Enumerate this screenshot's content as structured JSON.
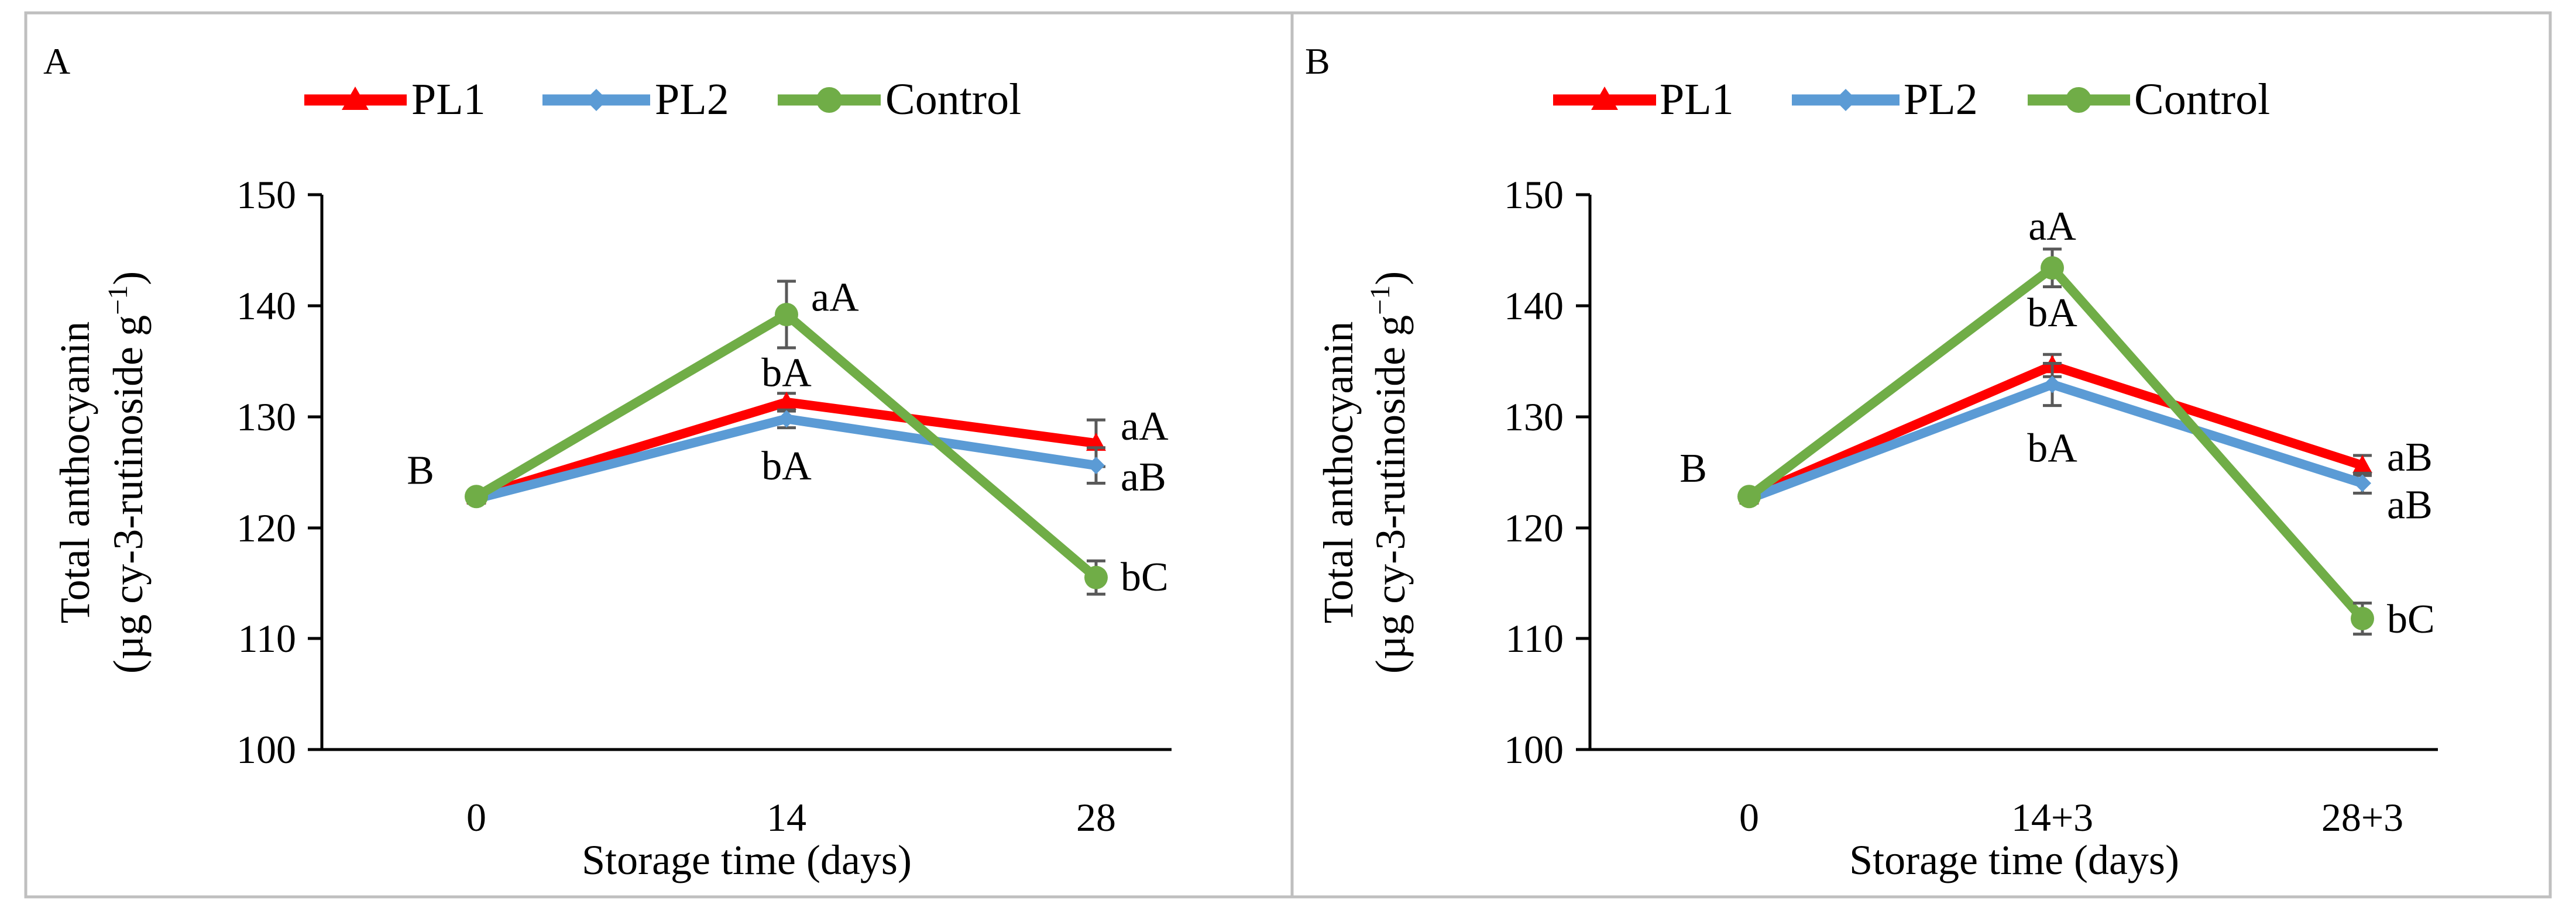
{
  "colors": {
    "PL1": "#ff0000",
    "PL2": "#5b9bd5",
    "Control": "#70ad47",
    "axis": "#000000",
    "frame": "#bfbfbf",
    "errorbar": "#595959"
  },
  "chart_data": [
    {
      "type": "line",
      "panel_label": "A",
      "categories": [
        "0",
        "14",
        "28"
      ],
      "series": [
        {
          "name": "PL1",
          "marker": "triangle",
          "values": [
            122.8,
            131.3,
            127.6
          ],
          "errors": [
            0.4,
            0.8,
            2.1
          ]
        },
        {
          "name": "PL2",
          "marker": "diamond",
          "values": [
            122.6,
            129.8,
            125.6
          ],
          "errors": [
            0.4,
            0.8,
            1.6
          ]
        },
        {
          "name": "Control",
          "marker": "circle",
          "values": [
            122.8,
            139.2,
            115.5
          ],
          "errors": [
            0.4,
            3.0,
            1.5
          ]
        }
      ],
      "annotations": [
        {
          "text": "B",
          "category": 0,
          "value": 125.2,
          "align": "left"
        },
        {
          "text": "aA",
          "category": 1,
          "value": 140.8,
          "align": "right"
        },
        {
          "text": "bA",
          "category": 1,
          "value": 134.0,
          "align": "center"
        },
        {
          "text": "bA",
          "category": 1,
          "value": 125.6,
          "align": "center"
        },
        {
          "text": "aA",
          "category": 2,
          "value": 129.2,
          "align": "right"
        },
        {
          "text": "aB",
          "category": 2,
          "value": 124.6,
          "align": "right"
        },
        {
          "text": "bC",
          "category": 2,
          "value": 115.6,
          "align": "right"
        }
      ],
      "xlabel": "Storage time (days)",
      "ylabel_line1": "Total anthocyanin",
      "ylabel_line2": "(µg cy-3-rutinoside g",
      "ylabel_sup": "−1",
      "ylabel_close": ")",
      "ylim": [
        100,
        150
      ],
      "yticks": [
        "100",
        "110",
        "120",
        "130",
        "140",
        "150"
      ],
      "legend_position": "top-left",
      "grid": false
    },
    {
      "type": "line",
      "panel_label": "B",
      "categories": [
        "0",
        "14+3",
        "28+3"
      ],
      "series": [
        {
          "name": "PL1",
          "marker": "triangle",
          "values": [
            122.8,
            134.6,
            125.6
          ],
          "errors": [
            0.4,
            1.0,
            0.9
          ]
        },
        {
          "name": "PL2",
          "marker": "diamond",
          "values": [
            122.6,
            132.9,
            124.0
          ],
          "errors": [
            0.4,
            1.9,
            0.9
          ]
        },
        {
          "name": "Control",
          "marker": "circle",
          "values": [
            122.8,
            143.4,
            111.8
          ],
          "errors": [
            0.4,
            1.7,
            1.4
          ]
        }
      ],
      "annotations": [
        {
          "text": "B",
          "category": 0,
          "value": 125.4,
          "align": "left"
        },
        {
          "text": "aA",
          "category": 1,
          "value": 147.2,
          "align": "center"
        },
        {
          "text": "bA",
          "category": 1,
          "value": 139.4,
          "align": "center"
        },
        {
          "text": "bA",
          "category": 1,
          "value": 127.2,
          "align": "center"
        },
        {
          "text": "aB",
          "category": 2,
          "value": 126.4,
          "align": "right"
        },
        {
          "text": "aB",
          "category": 2,
          "value": 122.1,
          "align": "right"
        },
        {
          "text": "bC",
          "category": 2,
          "value": 111.8,
          "align": "right"
        }
      ],
      "xlabel": "Storage time (days)",
      "ylabel_line1": "Total anthocyanin",
      "ylabel_line2": "(µg cy-3-rutinoside g",
      "ylabel_sup": "−1",
      "ylabel_close": ")",
      "ylim": [
        100,
        150
      ],
      "yticks": [
        "100",
        "110",
        "120",
        "130",
        "140",
        "150"
      ],
      "legend_position": "top-left",
      "grid": false
    }
  ]
}
